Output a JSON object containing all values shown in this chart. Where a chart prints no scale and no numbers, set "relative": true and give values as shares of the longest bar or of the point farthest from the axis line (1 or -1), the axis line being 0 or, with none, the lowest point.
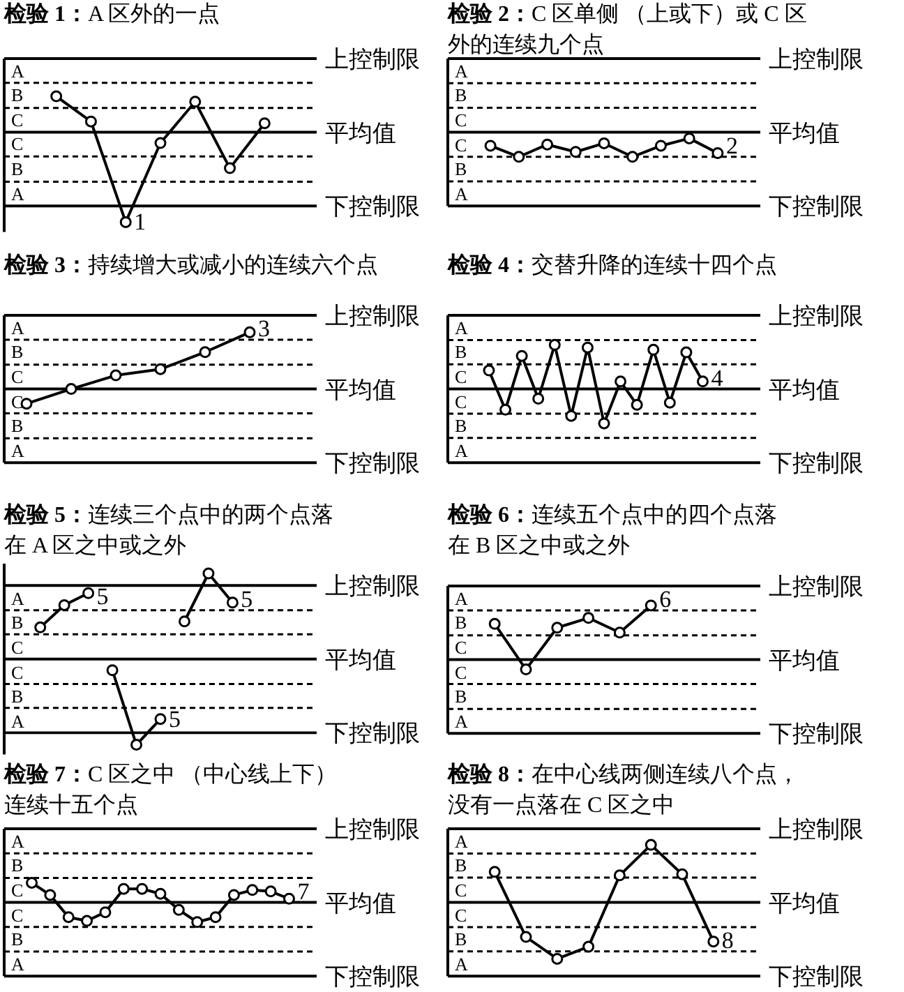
{
  "chart_data": [
    {
      "type": "line",
      "title": "检验 1：A 区外的一点",
      "relative": true,
      "categories": [
        null,
        null,
        null,
        null,
        null,
        null,
        null,
        null,
        null
      ],
      "series": [
        {
          "name": "1",
          "color": "#000000",
          "values": [
            null,
            0.4,
            0.12,
            -1,
            -0.12,
            0.34,
            -0.4,
            0.1,
            null
          ]
        }
      ],
      "tick_labels": false,
      "ref_lines": [
        {
          "axis": "y",
          "value": 0.82,
          "label": "上控制限"
        },
        {
          "axis": "y",
          "value": 0.55,
          "line_style": "dashed"
        },
        {
          "axis": "y",
          "value": 0.27,
          "line_style": "dashed"
        },
        {
          "axis": "y",
          "value": 0,
          "label": "平均值"
        },
        {
          "axis": "y",
          "value": -0.27,
          "line_style": "dashed"
        },
        {
          "axis": "y",
          "value": -0.55,
          "line_style": "dashed"
        },
        {
          "axis": "y",
          "value": -0.82,
          "label": "下控制限"
        }
      ],
      "annotations": [
        "A",
        "B",
        "C",
        "C",
        "B",
        "A"
      ],
      "marker": "circle",
      "line_style": "solid"
    },
    {
      "type": "line",
      "title": "检验 2：C 区单侧 （上或下）或 C 区外的连续九个点",
      "relative": true,
      "categories": [
        null,
        null,
        null,
        null,
        null,
        null,
        null,
        null,
        null,
        null,
        null
      ],
      "series": [
        {
          "name": "2",
          "color": "#000000",
          "values": [
            null,
            -0.55,
            -1,
            -0.5,
            -0.8,
            -0.45,
            -1,
            -0.55,
            -0.25,
            -0.85,
            null
          ]
        }
      ],
      "tick_labels": false,
      "ref_lines": [
        {
          "axis": "y",
          "value": 3,
          "label": "上控制限"
        },
        {
          "axis": "y",
          "value": 2,
          "line_style": "dashed"
        },
        {
          "axis": "y",
          "value": 1,
          "line_style": "dashed"
        },
        {
          "axis": "y",
          "value": 0,
          "label": "平均值"
        },
        {
          "axis": "y",
          "value": -1,
          "line_style": "dashed"
        },
        {
          "axis": "y",
          "value": -2,
          "line_style": "dashed"
        },
        {
          "axis": "y",
          "value": -3,
          "label": "下控制限"
        }
      ],
      "annotations": [
        "A",
        "B",
        "C",
        "C",
        "B",
        "A"
      ],
      "marker": "circle",
      "line_style": "solid"
    },
    {
      "type": "line",
      "title": "检验 3：持续增大或减小的连续六个点",
      "relative": true,
      "categories": [
        null,
        null,
        null,
        null,
        null,
        null,
        null
      ],
      "series": [
        {
          "name": "3",
          "color": "#000000",
          "values": [
            -0.26,
            0,
            0.24,
            0.35,
            0.65,
            1,
            null
          ]
        }
      ],
      "tick_labels": false,
      "ref_lines": [
        {
          "axis": "y",
          "value": 1.3,
          "label": "上控制限"
        },
        {
          "axis": "y",
          "value": 0.87,
          "line_style": "dashed"
        },
        {
          "axis": "y",
          "value": 0.43,
          "line_style": "dashed"
        },
        {
          "axis": "y",
          "value": 0,
          "label": "平均值"
        },
        {
          "axis": "y",
          "value": -0.43,
          "line_style": "dashed"
        },
        {
          "axis": "y",
          "value": -0.87,
          "line_style": "dashed"
        },
        {
          "axis": "y",
          "value": -1.3,
          "label": "下控制限"
        }
      ],
      "annotations": [
        "A",
        "B",
        "C",
        "C",
        "B",
        "A"
      ],
      "marker": "circle",
      "line_style": "solid"
    },
    {
      "type": "line",
      "title": "检验 4：交替升降的连续十四个点",
      "relative": true,
      "categories": [
        null,
        null,
        null,
        null,
        null,
        null,
        null,
        null,
        null,
        null,
        null,
        null,
        null,
        null,
        null,
        null,
        null,
        null,
        null
      ],
      "series": [
        {
          "name": "4",
          "color": "#000000",
          "values": [
            null,
            null,
            0.42,
            -0.47,
            0.75,
            -0.22,
            1,
            -0.61,
            0.94,
            -0.78,
            0.17,
            -0.36,
            0.89,
            -0.31,
            0.83,
            0.17,
            null,
            null,
            null
          ]
        }
      ],
      "tick_labels": false,
      "ref_lines": [
        {
          "axis": "y",
          "value": 1.67,
          "label": "上控制限"
        },
        {
          "axis": "y",
          "value": 1.11,
          "line_style": "dashed"
        },
        {
          "axis": "y",
          "value": 0.56,
          "line_style": "dashed"
        },
        {
          "axis": "y",
          "value": 0,
          "label": "平均值"
        },
        {
          "axis": "y",
          "value": -0.56,
          "line_style": "dashed"
        },
        {
          "axis": "y",
          "value": -1.11,
          "line_style": "dashed"
        },
        {
          "axis": "y",
          "value": -1.67,
          "label": "下控制限"
        }
      ],
      "annotations": [
        "A",
        "B",
        "C",
        "C",
        "B",
        "A"
      ],
      "marker": "circle",
      "line_style": "solid"
    },
    {
      "type": "line",
      "title": "检验 5：连续三个点中的两个点落在 A 区之中或之外",
      "relative": true,
      "categories": [
        null,
        null,
        null,
        null,
        null,
        null,
        null,
        null,
        null,
        null,
        null,
        null,
        null
      ],
      "series": [
        {
          "name": "5",
          "color": "#000000",
          "values": [
            null,
            0.37,
            0.63,
            0.77,
            null,
            null,
            null,
            null,
            null,
            null,
            null,
            null,
            null
          ]
        },
        {
          "name": "5",
          "color": "#000000",
          "values": [
            null,
            null,
            null,
            null,
            -0.13,
            -1,
            -0.7,
            null,
            null,
            null,
            null,
            null,
            null
          ]
        },
        {
          "name": "5",
          "color": "#000000",
          "values": [
            null,
            null,
            null,
            null,
            null,
            null,
            null,
            0.44,
            1,
            0.66,
            null,
            null,
            null
          ]
        }
      ],
      "tick_labels": false,
      "ref_lines": [
        {
          "axis": "y",
          "value": 0.86,
          "label": "上控制限"
        },
        {
          "axis": "y",
          "value": 0.57,
          "line_style": "dashed"
        },
        {
          "axis": "y",
          "value": 0.29,
          "line_style": "dashed"
        },
        {
          "axis": "y",
          "value": 0,
          "label": "平均值"
        },
        {
          "axis": "y",
          "value": -0.29,
          "line_style": "dashed"
        },
        {
          "axis": "y",
          "value": -0.57,
          "line_style": "dashed"
        },
        {
          "axis": "y",
          "value": -0.86,
          "label": "下控制限"
        }
      ],
      "annotations": [
        "A",
        "B",
        "C",
        "C",
        "B",
        "A"
      ],
      "marker": "circle",
      "line_style": "solid"
    },
    {
      "type": "line",
      "title": "检验 6：连续五个点中的四个点落在 B 区之中或之外",
      "relative": true,
      "categories": [
        null,
        null,
        null,
        null,
        null,
        null,
        null,
        null,
        null,
        null
      ],
      "series": [
        {
          "name": "6",
          "color": "#000000",
          "values": [
            null,
            0.66,
            -0.18,
            0.59,
            0.77,
            0.5,
            1,
            null,
            null,
            null
          ]
        }
      ],
      "tick_labels": false,
      "ref_lines": [
        {
          "axis": "y",
          "value": 1.36,
          "label": "上控制限"
        },
        {
          "axis": "y",
          "value": 0.91,
          "line_style": "dashed"
        },
        {
          "axis": "y",
          "value": 0.45,
          "line_style": "dashed"
        },
        {
          "axis": "y",
          "value": 0,
          "label": "平均值"
        },
        {
          "axis": "y",
          "value": -0.45,
          "line_style": "dashed"
        },
        {
          "axis": "y",
          "value": -0.91,
          "line_style": "dashed"
        },
        {
          "axis": "y",
          "value": -1.36,
          "label": "下控制限"
        }
      ],
      "annotations": [
        "A",
        "B",
        "C",
        "C",
        "B",
        "A"
      ],
      "marker": "circle",
      "line_style": "solid"
    },
    {
      "type": "line",
      "title": "检验 7：C 区之中 （中心线上下）连续十五个点",
      "relative": true,
      "categories": [
        null,
        null,
        null,
        null,
        null,
        null,
        null,
        null,
        null,
        null,
        null,
        null,
        null,
        null,
        null,
        null,
        null
      ],
      "series": [
        {
          "name": "7",
          "color": "#000000",
          "values": [
            null,
            1,
            0.38,
            -0.75,
            -0.94,
            -0.5,
            0.69,
            0.69,
            0.44,
            -0.38,
            -1,
            -0.75,
            0.38,
            0.63,
            0.56,
            0.19,
            null
          ]
        }
      ],
      "tick_labels": false,
      "ref_lines": [
        {
          "axis": "y",
          "value": 3.75,
          "label": "上控制限"
        },
        {
          "axis": "y",
          "value": 2.5,
          "line_style": "dashed"
        },
        {
          "axis": "y",
          "value": 1.25,
          "line_style": "dashed"
        },
        {
          "axis": "y",
          "value": 0,
          "label": "平均值"
        },
        {
          "axis": "y",
          "value": -1.25,
          "line_style": "dashed"
        },
        {
          "axis": "y",
          "value": -2.5,
          "line_style": "dashed"
        },
        {
          "axis": "y",
          "value": -3.75,
          "label": "下控制限"
        }
      ],
      "annotations": [
        "A",
        "B",
        "C",
        "C",
        "B",
        "A"
      ],
      "marker": "circle",
      "line_style": "solid"
    },
    {
      "type": "line",
      "title": "检验 8：在中心线两侧连续八个点，没有一点落在 C 区之中",
      "relative": true,
      "categories": [
        null,
        null,
        null,
        null,
        null,
        null,
        null,
        null,
        null,
        null
      ],
      "series": [
        {
          "name": "8",
          "color": "#000000",
          "values": [
            null,
            0.53,
            -0.6,
            -0.98,
            -0.77,
            0.47,
            1,
            0.49,
            -0.68,
            null
          ]
        }
      ],
      "tick_labels": false,
      "ref_lines": [
        {
          "axis": "y",
          "value": 1.28,
          "label": "上控制限"
        },
        {
          "axis": "y",
          "value": 0.85,
          "line_style": "dashed"
        },
        {
          "axis": "y",
          "value": 0.43,
          "line_style": "dashed"
        },
        {
          "axis": "y",
          "value": 0,
          "label": "平均值"
        },
        {
          "axis": "y",
          "value": -0.43,
          "line_style": "dashed"
        },
        {
          "axis": "y",
          "value": -0.85,
          "line_style": "dashed"
        },
        {
          "axis": "y",
          "value": -1.28,
          "label": "下控制限"
        }
      ],
      "annotations": [
        "A",
        "B",
        "C",
        "C",
        "B",
        "A"
      ],
      "marker": "circle",
      "line_style": "solid"
    }
  ]
}
